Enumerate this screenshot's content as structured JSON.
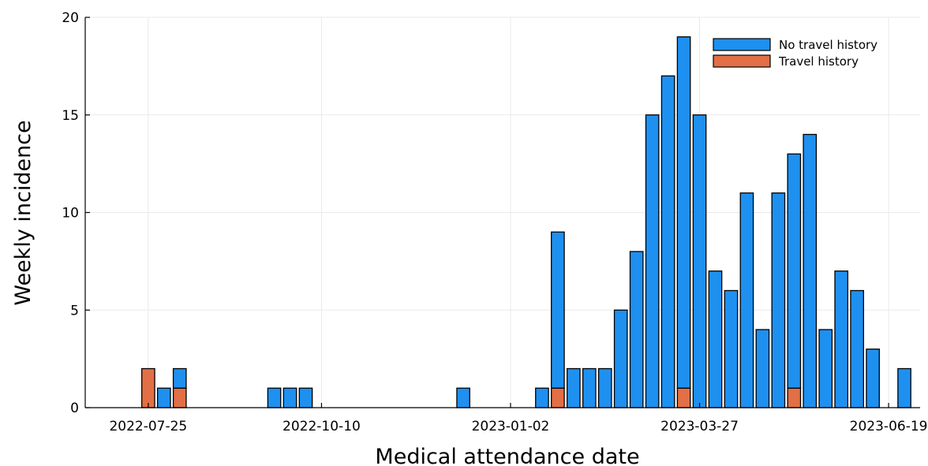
{
  "chart_data": {
    "type": "bar",
    "stacked": true,
    "title": "",
    "xlabel": "Medical attendance date",
    "ylabel": "Weekly incidence",
    "ylim": [
      0,
      20
    ],
    "yticks": [
      0,
      5,
      10,
      15,
      20
    ],
    "xlim": [
      "2022-06-27",
      "2023-07-03"
    ],
    "xticks": [
      "2022-07-25",
      "2022-10-10",
      "2023-01-02",
      "2023-03-27",
      "2023-06-19"
    ],
    "grid": true,
    "legend_position": "top-right",
    "series": [
      {
        "name": "No travel history",
        "color": "#1e90f0",
        "points": [
          {
            "week": "2022-08-01",
            "value": 1
          },
          {
            "week": "2022-08-08",
            "value": 1
          },
          {
            "week": "2022-09-19",
            "value": 1
          },
          {
            "week": "2022-09-26",
            "value": 1
          },
          {
            "week": "2022-10-03",
            "value": 1
          },
          {
            "week": "2022-12-12",
            "value": 1
          },
          {
            "week": "2023-01-16",
            "value": 1
          },
          {
            "week": "2023-01-23",
            "value": 8
          },
          {
            "week": "2023-01-30",
            "value": 2
          },
          {
            "week": "2023-02-06",
            "value": 2
          },
          {
            "week": "2023-02-13",
            "value": 2
          },
          {
            "week": "2023-02-20",
            "value": 5
          },
          {
            "week": "2023-02-27",
            "value": 8
          },
          {
            "week": "2023-03-06",
            "value": 15
          },
          {
            "week": "2023-03-13",
            "value": 17
          },
          {
            "week": "2023-03-20",
            "value": 18
          },
          {
            "week": "2023-03-27",
            "value": 15
          },
          {
            "week": "2023-04-03",
            "value": 7
          },
          {
            "week": "2023-04-10",
            "value": 6
          },
          {
            "week": "2023-04-17",
            "value": 11
          },
          {
            "week": "2023-04-24",
            "value": 4
          },
          {
            "week": "2023-05-01",
            "value": 11
          },
          {
            "week": "2023-05-08",
            "value": 12
          },
          {
            "week": "2023-05-15",
            "value": 14
          },
          {
            "week": "2023-05-22",
            "value": 4
          },
          {
            "week": "2023-05-29",
            "value": 7
          },
          {
            "week": "2023-06-05",
            "value": 6
          },
          {
            "week": "2023-06-12",
            "value": 3
          },
          {
            "week": "2023-06-26",
            "value": 2
          }
        ]
      },
      {
        "name": "Travel history",
        "color": "#e26f46",
        "points": [
          {
            "week": "2022-07-25",
            "value": 2
          },
          {
            "week": "2022-08-08",
            "value": 1
          },
          {
            "week": "2023-01-23",
            "value": 1
          },
          {
            "week": "2023-03-20",
            "value": 1
          },
          {
            "week": "2023-05-08",
            "value": 1
          }
        ]
      }
    ]
  }
}
